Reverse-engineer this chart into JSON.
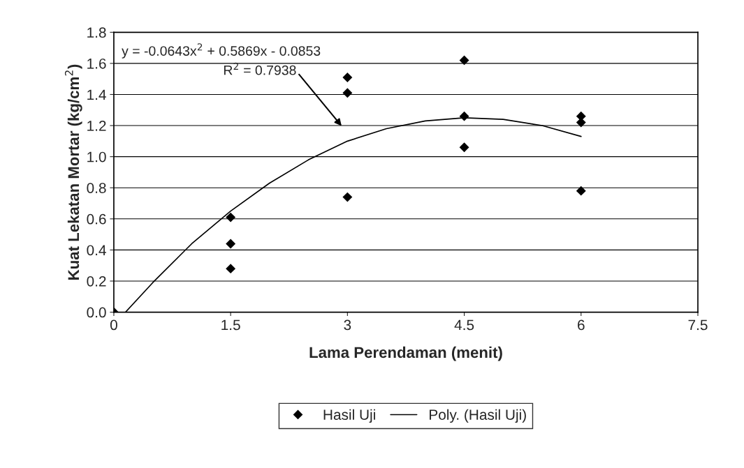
{
  "chart_data": {
    "type": "scatter",
    "xlabel": "Lama Perendaman (menit)",
    "ylabel": "Kuat Lekatan Mortar (kg/cm$^{2}$)",
    "series": [
      {
        "name": "Hasil Uji",
        "marker": "diamond",
        "color": "#000000",
        "x": [
          0,
          1.5,
          1.5,
          1.5,
          3,
          3,
          3,
          4.5,
          4.5,
          4.5,
          6,
          6,
          6
        ],
        "values": [
          0,
          0.61,
          0.44,
          0.28,
          1.51,
          1.41,
          0.74,
          1.62,
          1.26,
          1.06,
          1.26,
          1.22,
          0.78
        ]
      },
      {
        "name": "Poly. (Hasil Uji)",
        "type": "line",
        "marker": "none",
        "line_style": "solid",
        "color": "#000000",
        "x": [
          0.15,
          0.5,
          1,
          1.5,
          2,
          2.5,
          3,
          3.5,
          4,
          4.5,
          5,
          5.5,
          6
        ],
        "values": [
          0.0,
          0.19,
          0.44,
          0.65,
          0.83,
          0.98,
          1.1,
          1.18,
          1.23,
          1.25,
          1.24,
          1.2,
          1.13
        ]
      }
    ],
    "annotations": [
      "y = -0.0643x$^{2}$ + 0.5869x - 0.0853",
      "R$^{2}$ = 0.7938"
    ],
    "xlim": [
      0,
      7.5
    ],
    "xticks": [
      0,
      1.5,
      3,
      4.5,
      6,
      7.5
    ],
    "ylim": [
      0,
      1.8
    ],
    "yticks": [
      {
        "value": 0,
        "label": "0.0"
      },
      {
        "value": 0.2,
        "label": "0.2"
      },
      {
        "value": 0.4,
        "label": "0.4"
      },
      {
        "value": 0.6,
        "label": "0.6"
      },
      {
        "value": 0.8,
        "label": "0.8"
      },
      {
        "value": 1.0,
        "label": "1.0"
      },
      {
        "value": 1.2,
        "label": "1.2"
      },
      {
        "value": 1.4,
        "label": "1.4"
      },
      {
        "value": 1.6,
        "label": "1.6"
      },
      {
        "value": 1.8,
        "label": "1.8"
      }
    ],
    "grid": "y",
    "legend": "bottom"
  }
}
